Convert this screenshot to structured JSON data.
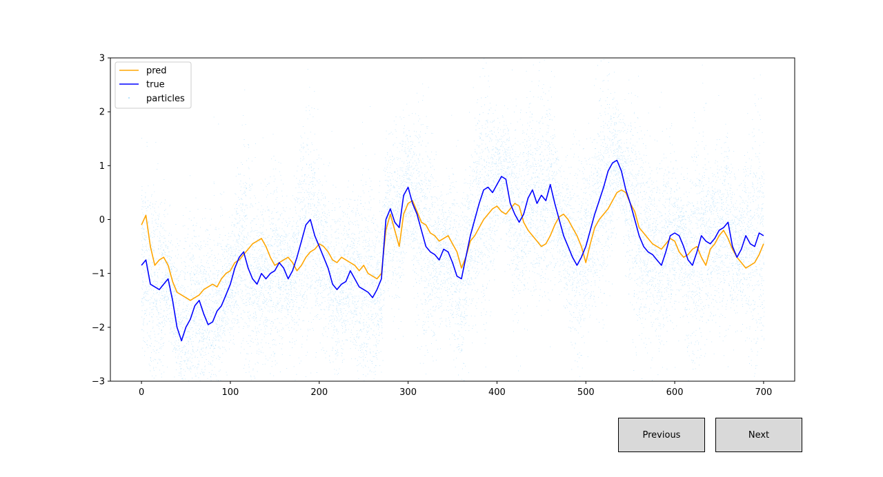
{
  "chart_data": {
    "type": "line",
    "title": "",
    "xlabel": "",
    "ylabel": "",
    "xlim": [
      -35,
      735
    ],
    "ylim": [
      -3,
      3
    ],
    "x_ticks": [
      0,
      100,
      200,
      300,
      400,
      500,
      600,
      700
    ],
    "x_tick_labels": [
      "0",
      "100",
      "200",
      "300",
      "400",
      "500",
      "600",
      "700"
    ],
    "y_ticks": [
      -3,
      -2,
      -1,
      0,
      1,
      2,
      3
    ],
    "y_tick_labels": [
      "−3",
      "−2",
      "−1",
      "0",
      "1",
      "2",
      "3"
    ],
    "grid": false,
    "legend_position": "upper-left",
    "series": [
      {
        "name": "pred",
        "color": "#ffa500",
        "kind": "line",
        "x": [
          0,
          5,
          10,
          15,
          20,
          25,
          30,
          35,
          40,
          45,
          50,
          55,
          60,
          65,
          70,
          75,
          80,
          85,
          90,
          95,
          100,
          105,
          110,
          115,
          120,
          125,
          130,
          135,
          140,
          145,
          150,
          155,
          160,
          165,
          170,
          175,
          180,
          185,
          190,
          195,
          200,
          205,
          210,
          215,
          220,
          225,
          230,
          235,
          240,
          245,
          250,
          255,
          260,
          265,
          270,
          275,
          280,
          285,
          290,
          295,
          300,
          305,
          310,
          315,
          320,
          325,
          330,
          335,
          340,
          345,
          350,
          355,
          360,
          365,
          370,
          375,
          380,
          385,
          390,
          395,
          400,
          405,
          410,
          415,
          420,
          425,
          430,
          435,
          440,
          445,
          450,
          455,
          460,
          465,
          470,
          475,
          480,
          485,
          490,
          495,
          500,
          505,
          510,
          515,
          520,
          525,
          530,
          535,
          540,
          545,
          550,
          555,
          560,
          565,
          570,
          575,
          580,
          585,
          590,
          595,
          600,
          605,
          610,
          615,
          620,
          625,
          630,
          635,
          640,
          645,
          650,
          655,
          660,
          665,
          670,
          675,
          680,
          685,
          690,
          695,
          700
        ],
        "y": [
          -0.1,
          0.08,
          -0.5,
          -0.85,
          -0.75,
          -0.7,
          -0.85,
          -1.15,
          -1.35,
          -1.4,
          -1.45,
          -1.5,
          -1.45,
          -1.4,
          -1.3,
          -1.25,
          -1.2,
          -1.25,
          -1.1,
          -1.0,
          -0.95,
          -0.8,
          -0.75,
          -0.65,
          -0.55,
          -0.45,
          -0.4,
          -0.35,
          -0.5,
          -0.7,
          -0.85,
          -0.8,
          -0.75,
          -0.7,
          -0.8,
          -0.95,
          -0.85,
          -0.7,
          -0.6,
          -0.55,
          -0.45,
          -0.5,
          -0.6,
          -0.75,
          -0.8,
          -0.7,
          -0.75,
          -0.8,
          -0.85,
          -0.95,
          -0.85,
          -1.0,
          -1.05,
          -1.1,
          -1.0,
          -0.2,
          0.1,
          -0.2,
          -0.5,
          0.1,
          0.3,
          0.35,
          0.15,
          -0.05,
          -0.1,
          -0.25,
          -0.3,
          -0.4,
          -0.35,
          -0.3,
          -0.45,
          -0.6,
          -0.9,
          -0.7,
          -0.4,
          -0.3,
          -0.15,
          0.0,
          0.1,
          0.2,
          0.25,
          0.15,
          0.1,
          0.2,
          0.3,
          0.25,
          -0.05,
          -0.2,
          -0.3,
          -0.4,
          -0.5,
          -0.45,
          -0.3,
          -0.1,
          0.05,
          0.1,
          0.0,
          -0.15,
          -0.3,
          -0.5,
          -0.8,
          -0.45,
          -0.15,
          0.0,
          0.1,
          0.2,
          0.35,
          0.5,
          0.55,
          0.5,
          0.3,
          0.15,
          -0.15,
          -0.25,
          -0.35,
          -0.45,
          -0.5,
          -0.55,
          -0.45,
          -0.35,
          -0.4,
          -0.6,
          -0.7,
          -0.65,
          -0.55,
          -0.5,
          -0.7,
          -0.85,
          -0.55,
          -0.45,
          -0.3,
          -0.2,
          -0.35,
          -0.55,
          -0.7,
          -0.8,
          -0.9,
          -0.85,
          -0.8,
          -0.65,
          -0.45
        ],
        "width": 1.6
      },
      {
        "name": "true",
        "color": "#0000ff",
        "kind": "line",
        "x": [
          0,
          5,
          10,
          15,
          20,
          25,
          30,
          35,
          40,
          45,
          50,
          55,
          60,
          65,
          70,
          75,
          80,
          85,
          90,
          95,
          100,
          105,
          110,
          115,
          120,
          125,
          130,
          135,
          140,
          145,
          150,
          155,
          160,
          165,
          170,
          175,
          180,
          185,
          190,
          195,
          200,
          205,
          210,
          215,
          220,
          225,
          230,
          235,
          240,
          245,
          250,
          255,
          260,
          265,
          270,
          275,
          280,
          285,
          290,
          295,
          300,
          305,
          310,
          315,
          320,
          325,
          330,
          335,
          340,
          345,
          350,
          355,
          360,
          365,
          370,
          375,
          380,
          385,
          390,
          395,
          400,
          405,
          410,
          415,
          420,
          425,
          430,
          435,
          440,
          445,
          450,
          455,
          460,
          465,
          470,
          475,
          480,
          485,
          490,
          495,
          500,
          505,
          510,
          515,
          520,
          525,
          530,
          535,
          540,
          545,
          550,
          555,
          560,
          565,
          570,
          575,
          580,
          585,
          590,
          595,
          600,
          605,
          610,
          615,
          620,
          625,
          630,
          635,
          640,
          645,
          650,
          655,
          660,
          665,
          670,
          675,
          680,
          685,
          690,
          695,
          700
        ],
        "y": [
          -0.85,
          -0.75,
          -1.2,
          -1.25,
          -1.3,
          -1.2,
          -1.1,
          -1.5,
          -2.0,
          -2.25,
          -2.0,
          -1.85,
          -1.6,
          -1.5,
          -1.75,
          -1.95,
          -1.9,
          -1.7,
          -1.6,
          -1.4,
          -1.2,
          -0.9,
          -0.7,
          -0.6,
          -0.9,
          -1.1,
          -1.2,
          -1.0,
          -1.1,
          -1.0,
          -0.95,
          -0.8,
          -0.9,
          -1.1,
          -0.95,
          -0.7,
          -0.4,
          -0.1,
          0.0,
          -0.3,
          -0.5,
          -0.7,
          -0.9,
          -1.2,
          -1.3,
          -1.2,
          -1.15,
          -0.95,
          -1.1,
          -1.25,
          -1.3,
          -1.35,
          -1.45,
          -1.3,
          -1.1,
          0.0,
          0.2,
          -0.05,
          -0.15,
          0.45,
          0.6,
          0.3,
          0.1,
          -0.2,
          -0.5,
          -0.6,
          -0.65,
          -0.75,
          -0.55,
          -0.6,
          -0.8,
          -1.05,
          -1.1,
          -0.7,
          -0.3,
          0.0,
          0.3,
          0.55,
          0.6,
          0.5,
          0.65,
          0.8,
          0.75,
          0.3,
          0.1,
          -0.05,
          0.1,
          0.4,
          0.55,
          0.3,
          0.45,
          0.35,
          0.65,
          0.3,
          0.0,
          -0.3,
          -0.5,
          -0.7,
          -0.85,
          -0.7,
          -0.5,
          -0.2,
          0.1,
          0.35,
          0.6,
          0.9,
          1.05,
          1.1,
          0.9,
          0.55,
          0.3,
          0.0,
          -0.3,
          -0.5,
          -0.6,
          -0.65,
          -0.75,
          -0.85,
          -0.6,
          -0.3,
          -0.25,
          -0.3,
          -0.5,
          -0.75,
          -0.85,
          -0.6,
          -0.3,
          -0.4,
          -0.45,
          -0.35,
          -0.2,
          -0.15,
          -0.05,
          -0.5,
          -0.7,
          -0.55,
          -0.3,
          -0.45,
          -0.5,
          -0.25,
          -0.3
        ],
        "width": 1.6
      },
      {
        "name": "particles",
        "color": "#87cefa",
        "kind": "scatter",
        "note": "dense cloud of particles per time step, roughly centred on the true value with spread of about ±1.5"
      }
    ]
  },
  "controls": {
    "previous_label": "Previous",
    "next_label": "Next"
  }
}
